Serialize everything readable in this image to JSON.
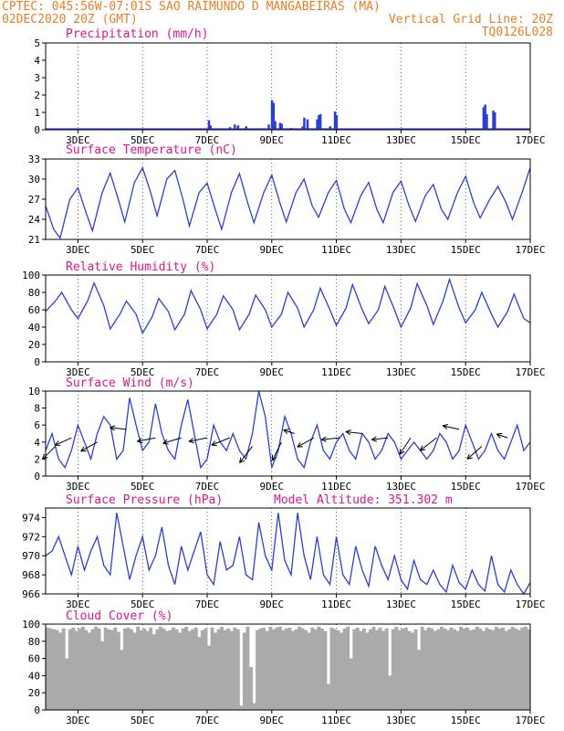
{
  "header": {
    "line1_left": "CPTEC:  045:56W-07:01S  SAO RAIMUNDO D MANGABEIRAS (MA)",
    "line2_left": "02DEC2020 20Z (GMT)",
    "line2_right": "Vertical Grid Line: 20Z",
    "line3_right": "TQ0126L028"
  },
  "colors": {
    "header": "#f07c22",
    "titles": "#e0168e",
    "series": "#2b3fd6",
    "cloud": "#aaaaaa"
  },
  "x_axis": {
    "start_day": 2.0,
    "end_day": 17.0,
    "tick_days": [
      3,
      5,
      7,
      9,
      11,
      13,
      15,
      17
    ],
    "tick_labels": [
      "3DEC",
      "5DEC",
      "7DEC",
      "9DEC",
      "11DEC",
      "13DEC",
      "15DEC",
      "17DEC"
    ]
  },
  "chart_data": [
    {
      "id": "precip",
      "type": "bar",
      "title": "Precipitation (mm/h)",
      "ylim": [
        0,
        5
      ],
      "yticks": [
        0,
        1,
        2,
        3,
        4,
        5
      ],
      "x_unit": "day of December",
      "points": [
        [
          6.9,
          0.08
        ],
        [
          7.05,
          0.55
        ],
        [
          7.1,
          0.25
        ],
        [
          7.7,
          0.15
        ],
        [
          7.85,
          0.3
        ],
        [
          7.95,
          0.25
        ],
        [
          8.2,
          0.2
        ],
        [
          8.9,
          0.3
        ],
        [
          9.0,
          1.7
        ],
        [
          9.05,
          1.55
        ],
        [
          9.1,
          0.5
        ],
        [
          9.25,
          0.4
        ],
        [
          9.3,
          0.35
        ],
        [
          9.6,
          0.1
        ],
        [
          9.95,
          0.2
        ],
        [
          10.0,
          0.7
        ],
        [
          10.1,
          0.6
        ],
        [
          10.4,
          0.6
        ],
        [
          10.45,
          0.85
        ],
        [
          10.5,
          0.9
        ],
        [
          10.8,
          0.2
        ],
        [
          10.95,
          1.05
        ],
        [
          11.0,
          0.85
        ],
        [
          15.55,
          1.3
        ],
        [
          15.6,
          1.45
        ],
        [
          15.65,
          0.9
        ],
        [
          15.85,
          1.1
        ],
        [
          15.9,
          1.0
        ]
      ]
    },
    {
      "id": "temp",
      "type": "line",
      "title": "Surface Temperature (nC)",
      "ylim": [
        21,
        33
      ],
      "yticks": [
        21,
        24,
        27,
        30,
        33
      ],
      "x": [
        2.0,
        2.25,
        2.45,
        2.75,
        3.0,
        3.25,
        3.45,
        3.75,
        4.0,
        4.25,
        4.45,
        4.75,
        5.0,
        5.25,
        5.45,
        5.75,
        6.0,
        6.25,
        6.45,
        6.75,
        7.0,
        7.25,
        7.45,
        7.75,
        8.0,
        8.25,
        8.45,
        8.75,
        9.0,
        9.25,
        9.45,
        9.75,
        10.0,
        10.25,
        10.45,
        10.75,
        11.0,
        11.25,
        11.45,
        11.75,
        12.0,
        12.25,
        12.45,
        12.75,
        13.0,
        13.25,
        13.45,
        13.75,
        14.0,
        14.25,
        14.45,
        14.75,
        15.0,
        15.25,
        15.45,
        15.75,
        16.0,
        16.25,
        16.45,
        16.75,
        17.0
      ],
      "y": [
        26,
        22.5,
        21.2,
        27,
        28.7,
        25,
        22.3,
        28,
        30.9,
        27,
        23.6,
        29.5,
        31.7,
        28,
        24.5,
        30,
        31.3,
        27,
        23,
        28,
        29.4,
        25.5,
        22.5,
        28,
        30.8,
        26.5,
        23.5,
        28,
        30.6,
        26.5,
        23.6,
        28,
        30.0,
        26,
        24.3,
        28,
        29.8,
        25.5,
        23.5,
        27.5,
        29.5,
        25.5,
        23.5,
        28,
        29.7,
        26,
        23.7,
        27.5,
        29.2,
        25.5,
        24.0,
        28,
        30.4,
        26.5,
        24.2,
        27,
        28.9,
        26.5,
        24.0,
        28,
        31.7
      ]
    },
    {
      "id": "rh",
      "type": "line",
      "title": "Relative Humidity (%)",
      "ylim": [
        0,
        100
      ],
      "yticks": [
        0,
        20,
        40,
        60,
        80,
        100
      ],
      "x": [
        2.0,
        2.3,
        2.5,
        2.8,
        3.0,
        3.3,
        3.5,
        3.8,
        4.0,
        4.3,
        4.5,
        4.8,
        5.0,
        5.3,
        5.5,
        5.8,
        6.0,
        6.3,
        6.5,
        6.8,
        7.0,
        7.3,
        7.5,
        7.8,
        8.0,
        8.3,
        8.5,
        8.8,
        9.0,
        9.3,
        9.5,
        9.8,
        10.0,
        10.3,
        10.5,
        10.8,
        11.0,
        11.3,
        11.5,
        11.8,
        12.0,
        12.3,
        12.5,
        12.8,
        13.0,
        13.3,
        13.5,
        13.8,
        14.0,
        14.3,
        14.5,
        14.8,
        15.0,
        15.3,
        15.5,
        15.8,
        16.0,
        16.3,
        16.5,
        16.8,
        17.0
      ],
      "y": [
        58,
        70,
        80,
        60,
        50,
        70,
        91,
        65,
        38,
        55,
        70,
        55,
        33,
        52,
        73,
        58,
        37,
        55,
        82,
        60,
        38,
        55,
        76,
        60,
        37,
        55,
        77,
        60,
        40,
        55,
        80,
        62,
        40,
        60,
        85,
        60,
        42,
        62,
        89,
        60,
        44,
        60,
        87,
        60,
        40,
        62,
        90,
        65,
        43,
        70,
        95,
        62,
        45,
        60,
        80,
        55,
        40,
        58,
        78,
        50,
        45
      ]
    },
    {
      "id": "wind",
      "type": "line",
      "title": "Surface Wind (m/s)",
      "ylim": [
        0,
        10
      ],
      "yticks": [
        0,
        2,
        4,
        6,
        8,
        10
      ],
      "x": [
        2.0,
        2.2,
        2.4,
        2.6,
        2.8,
        3.0,
        3.2,
        3.4,
        3.6,
        3.8,
        4.0,
        4.2,
        4.4,
        4.6,
        4.8,
        5.0,
        5.2,
        5.4,
        5.6,
        5.8,
        6.0,
        6.2,
        6.4,
        6.6,
        6.8,
        7.0,
        7.2,
        7.4,
        7.6,
        7.8,
        8.0,
        8.2,
        8.4,
        8.6,
        8.8,
        9.0,
        9.2,
        9.4,
        9.6,
        9.8,
        10.0,
        10.2,
        10.4,
        10.6,
        10.8,
        11.0,
        11.2,
        11.4,
        11.6,
        11.8,
        12.0,
        12.2,
        12.4,
        12.6,
        12.8,
        13.0,
        13.2,
        13.4,
        13.6,
        13.8,
        14.0,
        14.2,
        14.4,
        14.6,
        14.8,
        15.0,
        15.2,
        15.4,
        15.6,
        15.8,
        16.0,
        16.2,
        16.4,
        16.6,
        16.8,
        17.0
      ],
      "y": [
        3,
        5,
        2,
        1,
        3,
        6,
        4,
        2,
        5,
        7,
        6,
        2,
        3,
        9.2,
        6,
        3,
        4,
        8.5,
        5,
        3,
        2,
        6,
        9,
        5,
        1,
        2,
        6,
        4,
        3,
        5,
        3,
        2,
        5,
        10,
        7,
        1,
        3,
        7,
        5,
        2,
        1,
        4,
        6,
        3,
        2,
        4,
        5,
        3,
        2,
        5,
        4,
        2,
        3,
        5,
        4,
        2,
        3,
        4,
        3,
        2,
        3,
        5,
        4,
        2,
        3,
        6,
        4,
        2,
        3,
        5,
        3,
        2,
        4,
        6,
        3,
        4
      ],
      "arrows": [
        [
          2.3,
          3.5,
          -0.35,
          -0.35
        ],
        [
          2.8,
          4.5,
          -0.45,
          -0.2
        ],
        [
          3.6,
          4.0,
          -0.45,
          -0.25
        ],
        [
          4.5,
          5.5,
          -0.45,
          0.05
        ],
        [
          5.4,
          4.5,
          -0.5,
          -0.1
        ],
        [
          6.2,
          4.5,
          -0.5,
          -0.15
        ],
        [
          7.0,
          4.5,
          -0.5,
          -0.1
        ],
        [
          7.7,
          4.5,
          -0.5,
          -0.2
        ],
        [
          8.4,
          3.5,
          -0.35,
          -0.45
        ],
        [
          9.3,
          4.0,
          -0.25,
          -0.5
        ],
        [
          9.7,
          5.0,
          -0.3,
          0.1
        ],
        [
          10.3,
          4.5,
          -0.45,
          -0.25
        ],
        [
          11.1,
          4.5,
          -0.5,
          -0.05
        ],
        [
          11.8,
          5.0,
          -0.45,
          0.05
        ],
        [
          12.6,
          4.5,
          -0.45,
          -0.05
        ],
        [
          13.3,
          4.5,
          -0.3,
          -0.45
        ],
        [
          14.1,
          4.5,
          -0.45,
          -0.35
        ],
        [
          14.8,
          5.5,
          -0.45,
          0.1
        ],
        [
          15.5,
          3.5,
          -0.4,
          -0.35
        ],
        [
          16.3,
          4.5,
          -0.3,
          0.1
        ]
      ]
    },
    {
      "id": "pres",
      "type": "line",
      "title": "Surface Pressure (hPa)",
      "annotation": "Model Altitude: 351.302 m",
      "ylim": [
        966,
        975
      ],
      "yticks": [
        966,
        968,
        970,
        972,
        974
      ],
      "x": [
        2.0,
        2.2,
        2.4,
        2.6,
        2.8,
        3.0,
        3.2,
        3.4,
        3.6,
        3.8,
        4.0,
        4.2,
        4.4,
        4.6,
        4.8,
        5.0,
        5.2,
        5.4,
        5.6,
        5.8,
        6.0,
        6.2,
        6.4,
        6.6,
        6.8,
        7.0,
        7.2,
        7.4,
        7.6,
        7.8,
        8.0,
        8.2,
        8.4,
        8.6,
        8.8,
        9.0,
        9.2,
        9.4,
        9.6,
        9.8,
        10.0,
        10.2,
        10.4,
        10.6,
        10.8,
        11.0,
        11.2,
        11.4,
        11.6,
        11.8,
        12.0,
        12.2,
        12.4,
        12.6,
        12.8,
        13.0,
        13.2,
        13.4,
        13.6,
        13.8,
        14.0,
        14.2,
        14.4,
        14.6,
        14.8,
        15.0,
        15.2,
        15.4,
        15.6,
        15.8,
        16.0,
        16.2,
        16.4,
        16.6,
        16.8,
        17.0
      ],
      "y": [
        970,
        970.5,
        972,
        970,
        968,
        971,
        968.5,
        970.5,
        972,
        969,
        968,
        974.5,
        971,
        967.5,
        970,
        972,
        968.5,
        970,
        973,
        969,
        967,
        971,
        968.5,
        970.5,
        972.5,
        968,
        967,
        971.5,
        968.5,
        969,
        972,
        968,
        967.5,
        973.5,
        970,
        968.5,
        974.5,
        969.5,
        968,
        974.5,
        970,
        967.5,
        972,
        968,
        967,
        972,
        968,
        967,
        971,
        968.5,
        966.8,
        971,
        969,
        967.5,
        970,
        967.5,
        966.5,
        969.5,
        967.5,
        967,
        968.5,
        967,
        966.2,
        969,
        967.2,
        966.5,
        968.5,
        967,
        966.3,
        970,
        967,
        966.2,
        968.5,
        967,
        966,
        967.2
      ]
    },
    {
      "id": "cloud",
      "type": "bar",
      "title": "Cloud Cover (%)",
      "ylim": [
        0,
        100
      ],
      "yticks": [
        0,
        20,
        40,
        60,
        80,
        100
      ],
      "x_start": 2.0,
      "x_step": 0.1,
      "values": [
        96,
        95,
        94,
        93,
        90,
        95,
        60,
        94,
        96,
        92,
        95,
        97,
        93,
        90,
        94,
        97,
        95,
        80,
        96,
        94,
        93,
        96,
        91,
        70,
        95,
        96,
        94,
        90,
        97,
        93,
        95,
        92,
        96,
        88,
        94,
        97,
        95,
        92,
        93,
        96,
        94,
        90,
        95,
        97,
        92,
        94,
        96,
        85,
        93,
        95,
        75,
        96,
        90,
        94,
        97,
        93,
        95,
        92,
        96,
        94,
        5,
        90,
        97,
        50,
        8,
        93,
        95,
        96,
        92,
        97,
        94,
        96,
        97,
        93,
        95,
        96,
        92,
        94,
        97,
        95,
        93,
        90,
        96,
        94,
        97,
        95,
        92,
        30,
        96,
        94,
        93,
        90,
        95,
        97,
        60,
        94,
        96,
        92,
        95,
        90,
        94,
        97,
        93,
        96,
        92,
        95,
        40,
        94,
        97,
        93,
        95,
        96,
        92,
        90,
        94,
        70,
        97,
        93,
        96,
        95,
        92,
        94,
        97,
        95,
        93,
        96,
        94,
        92,
        97,
        95,
        96,
        93,
        94,
        97,
        95,
        92,
        96,
        94,
        93,
        97,
        95,
        96,
        92,
        94,
        97,
        95,
        93,
        96,
        97,
        94,
        95,
        96,
        92,
        97,
        94,
        95,
        96,
        93,
        97,
        95,
        96,
        94,
        97,
        95,
        93,
        96,
        97,
        95,
        94,
        96,
        97,
        93,
        95,
        96,
        94,
        97,
        95,
        96,
        93,
        97,
        94,
        95,
        96,
        97,
        94,
        93,
        96,
        97,
        95,
        94,
        96,
        97,
        95,
        93,
        96,
        97,
        94,
        95,
        96,
        97,
        93,
        95,
        96,
        94,
        97,
        96,
        95,
        93,
        97,
        96,
        94,
        95,
        97,
        96,
        93,
        95,
        97,
        96,
        94,
        95,
        97,
        96,
        95,
        93,
        97,
        96,
        94,
        95,
        97,
        96,
        95,
        94,
        96,
        97,
        95,
        93,
        96,
        97,
        94,
        95,
        96,
        97,
        93,
        95,
        96,
        94,
        97,
        96
      ]
    }
  ]
}
